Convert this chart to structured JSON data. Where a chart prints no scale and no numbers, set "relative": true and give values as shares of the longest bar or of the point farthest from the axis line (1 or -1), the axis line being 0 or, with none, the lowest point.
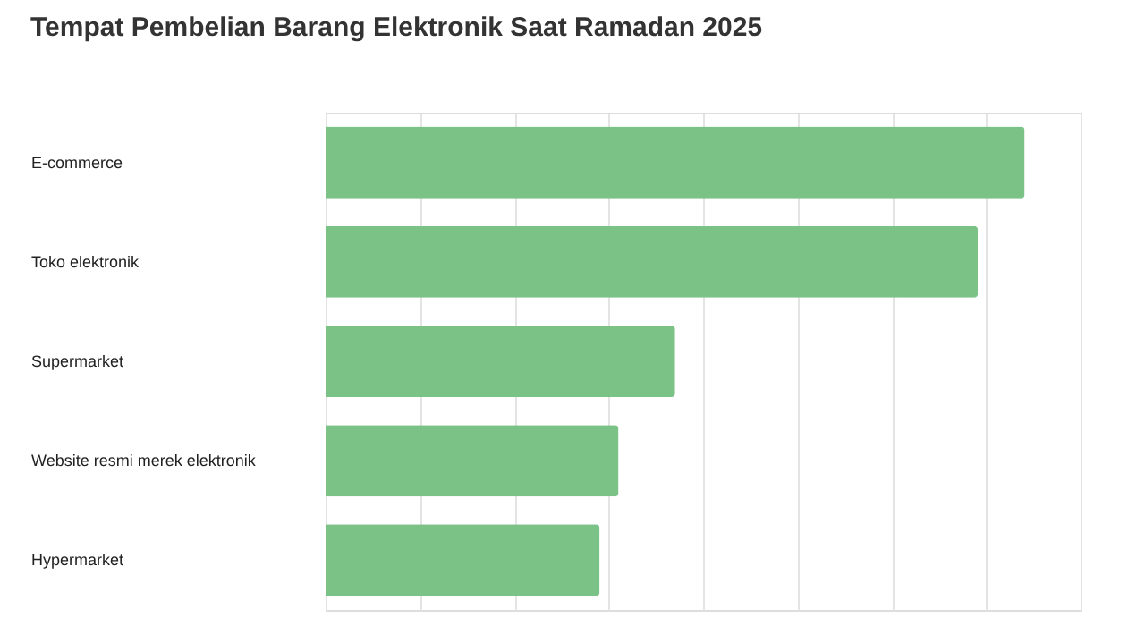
{
  "chart_data": {
    "type": "bar",
    "orientation": "horizontal",
    "relative": true,
    "title": "Tempat Pembelian Barang Elektronik Saat Ramadan 2025",
    "categories": [
      "E-commerce",
      "Toko elektronik",
      "Supermarket",
      "Website resmi merek elektronik",
      "Hypermarket"
    ],
    "values": [
      1,
      0.933,
      0.5,
      0.419,
      0.392
    ],
    "color": "#7bc287",
    "grid": "x"
  }
}
